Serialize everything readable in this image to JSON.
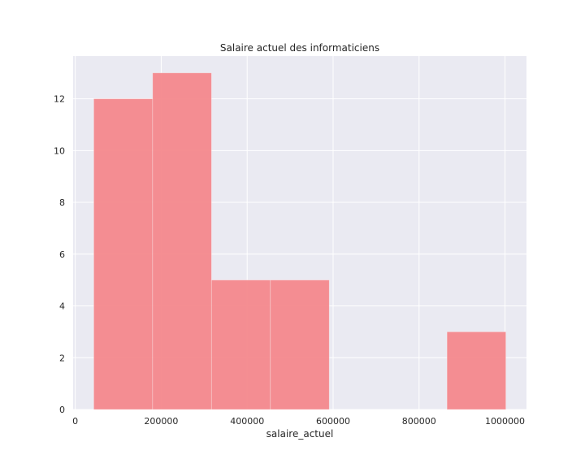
{
  "chart_data": {
    "type": "bar",
    "title": "Salaire actuel des informaticiens",
    "xlabel": "salaire_actuel",
    "ylabel": "",
    "bins": [
      {
        "start": 43000,
        "end": 180000,
        "count": 12
      },
      {
        "start": 180000,
        "end": 317000,
        "count": 13
      },
      {
        "start": 317000,
        "end": 454000,
        "count": 5
      },
      {
        "start": 454000,
        "end": 591000,
        "count": 5
      },
      {
        "start": 591000,
        "end": 728000,
        "count": 0
      },
      {
        "start": 728000,
        "end": 865000,
        "count": 0
      },
      {
        "start": 865000,
        "end": 1002000,
        "count": 3
      }
    ],
    "xlim": [
      -5000,
      1050000
    ],
    "ylim": [
      0,
      13.65
    ],
    "xticks": [
      0,
      200000,
      400000,
      600000,
      800000,
      1000000
    ],
    "xtick_labels": [
      "0",
      "200000",
      "400000",
      "600000",
      "800000",
      "1000000"
    ],
    "yticks": [
      0,
      2,
      4,
      6,
      8,
      10,
      12
    ],
    "ytick_labels": [
      "0",
      "2",
      "4",
      "6",
      "8",
      "10",
      "12"
    ],
    "grid": true,
    "colors": {
      "bar": "#f4888c",
      "background": "#eaeaf2",
      "grid": "#ffffff"
    }
  }
}
